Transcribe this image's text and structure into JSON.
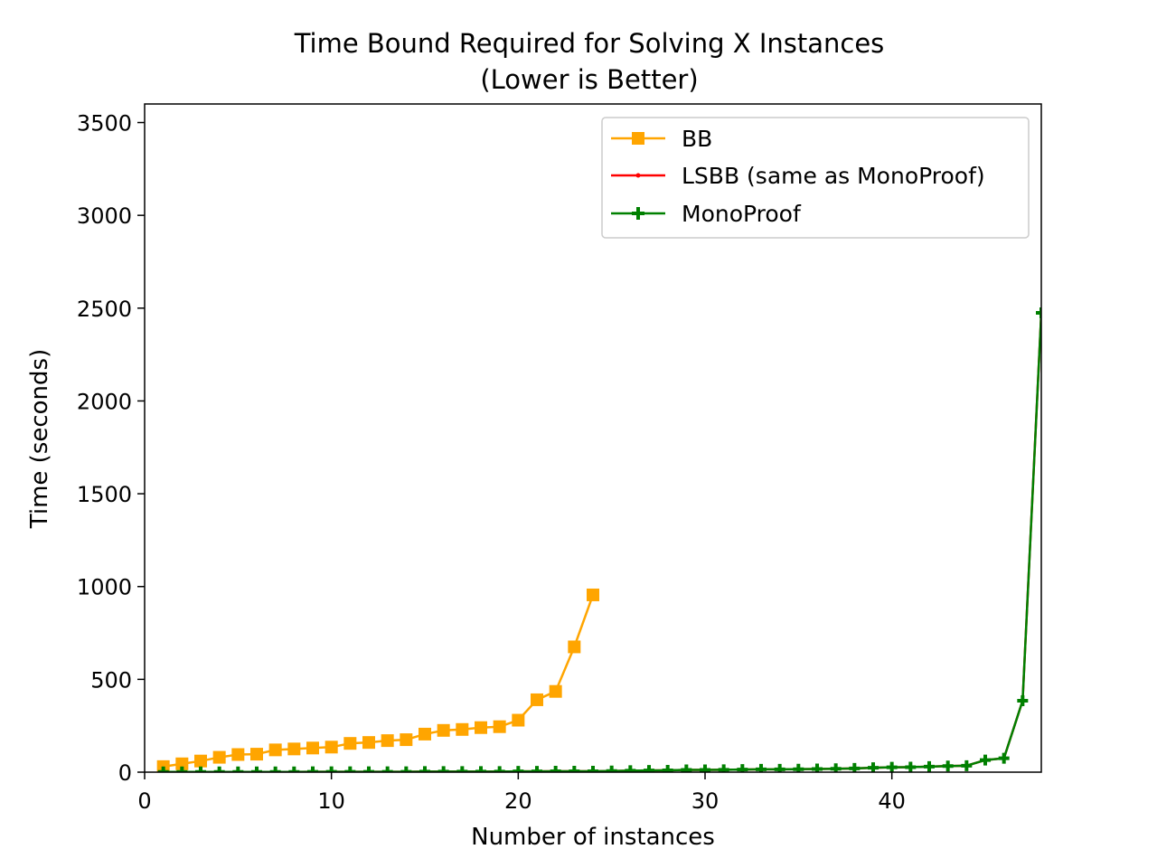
{
  "chart_data": {
    "type": "line",
    "title": "Time Bound Required for Solving X Instances",
    "subtitle": "(Lower is Better)",
    "xlabel": "Number of instances",
    "ylabel": "Time (seconds)",
    "xlim": [
      0,
      48
    ],
    "ylim": [
      0,
      3600
    ],
    "xticks": [
      0,
      10,
      20,
      30,
      40
    ],
    "yticks": [
      0,
      500,
      1000,
      1500,
      2000,
      2500,
      3000,
      3500
    ],
    "grid": false,
    "legend_position": "top-right",
    "series": [
      {
        "name": "BB",
        "color": "#ffa500",
        "marker": "square",
        "x": [
          1,
          2,
          3,
          4,
          5,
          6,
          7,
          8,
          9,
          10,
          11,
          12,
          13,
          14,
          15,
          16,
          17,
          18,
          19,
          20,
          21,
          22,
          23,
          24
        ],
        "y": [
          30,
          45,
          60,
          80,
          95,
          97,
          120,
          125,
          130,
          135,
          155,
          160,
          170,
          175,
          205,
          225,
          230,
          240,
          245,
          280,
          390,
          435,
          675,
          955
        ]
      },
      {
        "name": "LSBB (same as MonoProof)",
        "color": "#ff0000",
        "marker": "dot",
        "x": [
          1,
          2,
          3,
          4,
          5,
          6,
          7,
          8,
          9,
          10,
          11,
          12,
          13,
          14,
          15,
          16,
          17,
          18,
          19,
          20,
          21,
          22,
          23,
          24,
          25,
          26,
          27,
          28,
          29,
          30,
          31,
          32,
          33,
          34,
          35,
          36,
          37,
          38,
          39,
          40,
          41,
          42,
          43,
          44,
          45,
          46,
          47,
          48
        ],
        "y": [
          1,
          1,
          1,
          1,
          1,
          1,
          1,
          1,
          2,
          2,
          2,
          2,
          2,
          2,
          3,
          3,
          3,
          3,
          3,
          4,
          4,
          5,
          5,
          5,
          6,
          8,
          9,
          10,
          12,
          12,
          13,
          14,
          15,
          15,
          16,
          17,
          18,
          20,
          24,
          26,
          27,
          30,
          33,
          35,
          65,
          75,
          385,
          2475
        ]
      },
      {
        "name": "MonoProof",
        "color": "#008000",
        "marker": "plus",
        "x": [
          1,
          2,
          3,
          4,
          5,
          6,
          7,
          8,
          9,
          10,
          11,
          12,
          13,
          14,
          15,
          16,
          17,
          18,
          19,
          20,
          21,
          22,
          23,
          24,
          25,
          26,
          27,
          28,
          29,
          30,
          31,
          32,
          33,
          34,
          35,
          36,
          37,
          38,
          39,
          40,
          41,
          42,
          43,
          44,
          45,
          46,
          47,
          48
        ],
        "y": [
          1,
          1,
          1,
          1,
          1,
          1,
          1,
          1,
          2,
          2,
          2,
          2,
          2,
          2,
          3,
          3,
          3,
          3,
          3,
          4,
          4,
          5,
          5,
          5,
          6,
          8,
          9,
          10,
          12,
          12,
          13,
          14,
          15,
          15,
          16,
          17,
          18,
          20,
          24,
          26,
          27,
          30,
          33,
          35,
          65,
          75,
          385,
          2475
        ]
      }
    ]
  }
}
